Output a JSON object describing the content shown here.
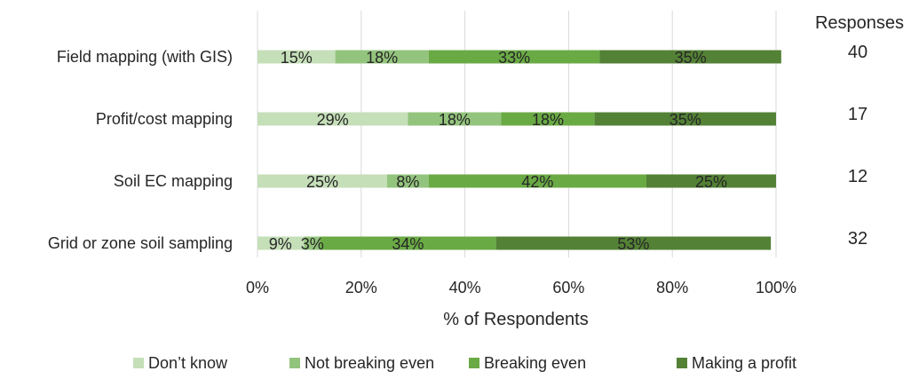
{
  "chart_data": {
    "type": "bar",
    "orientation": "horizontal",
    "stacked": true,
    "percent": true,
    "xlabel": "% of Respondents",
    "xlim": [
      0,
      100
    ],
    "x_ticks": [
      "0%",
      "20%",
      "40%",
      "60%",
      "80%",
      "100%"
    ],
    "grid": "vertical",
    "legend_position": "bottom",
    "categories": [
      "Field mapping (with GIS)",
      "Profit/cost mapping",
      "Soil EC mapping",
      "Grid or zone soil sampling"
    ],
    "series": [
      {
        "name": "Don’t know",
        "color": "#c5dfb8",
        "values": [
          15,
          29,
          25,
          9
        ],
        "labels": [
          "15%",
          "29%",
          "25%",
          "9%"
        ]
      },
      {
        "name": "Not breaking even",
        "color": "#93c47d",
        "values": [
          18,
          18,
          8,
          3
        ],
        "labels": [
          "18%",
          "18%",
          "8%",
          "3%"
        ]
      },
      {
        "name": "Breaking even",
        "color": "#6aaa45",
        "values": [
          33,
          18,
          42,
          34
        ],
        "labels": [
          "33%",
          "18%",
          "42%",
          "34%"
        ]
      },
      {
        "name": "Making a profit",
        "color": "#538135",
        "values": [
          35,
          35,
          25,
          53
        ],
        "labels": [
          "35%",
          "35%",
          "25%",
          "53%"
        ]
      }
    ],
    "responses_title": "Responses",
    "responses": [
      "40",
      "17",
      "12",
      "32"
    ]
  }
}
